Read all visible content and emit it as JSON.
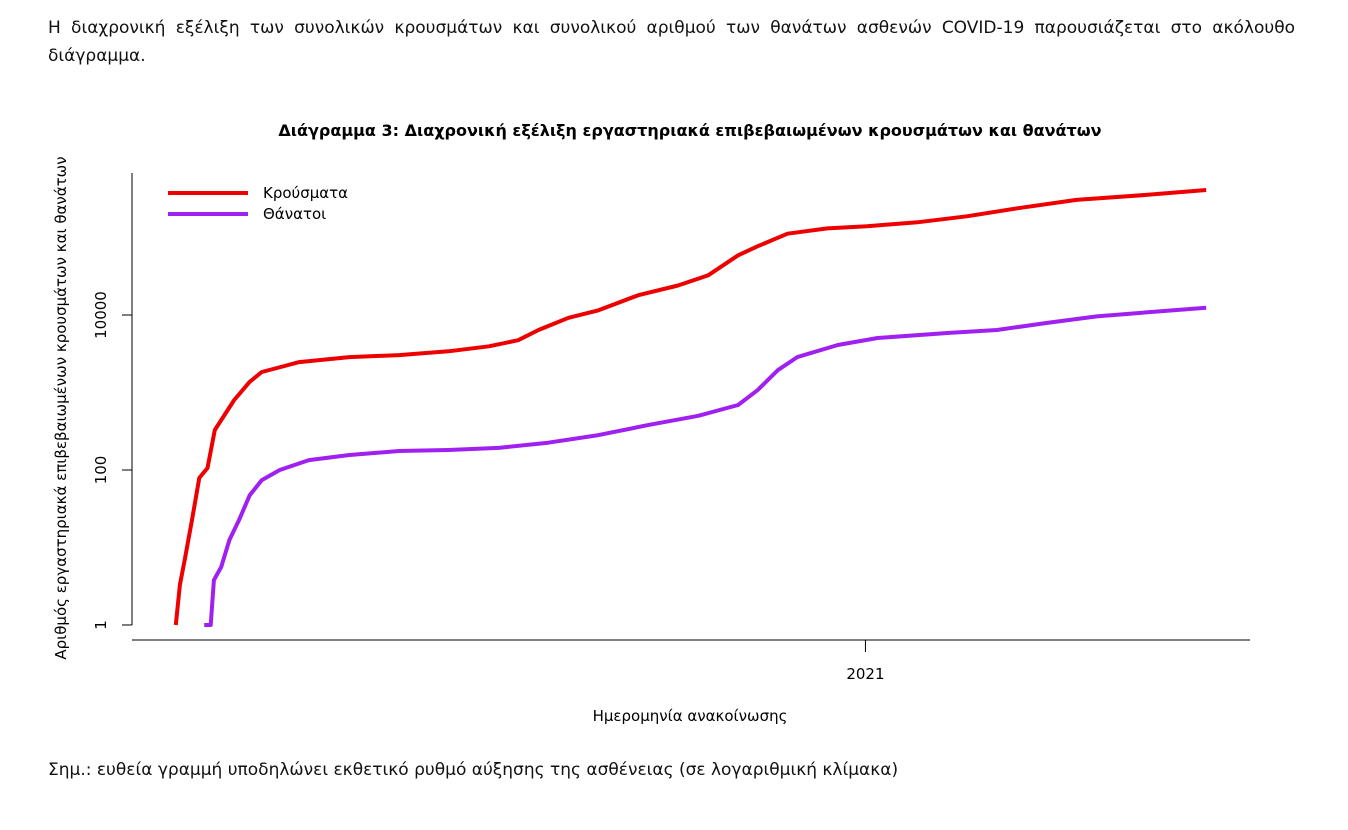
{
  "intro": "Η διαχρονική εξέλιξη των συνολικών κρουσμάτων και συνολικού αριθμού των θανάτων ασθενών COVID-19 παρουσιάζεται στο ακόλουθο διάγραμμα.",
  "chart_data": {
    "type": "line",
    "title": "Διάγραμμα 3: Διαχρονική εξέλιξη εργαστηριακά επιβεβαιωμένων κρουσμάτων και θανάτων",
    "xlabel": "Ημερομηνία ανακοίνωσης",
    "ylabel": "Αριθμός εργαστηριακά επιβεβαιωμένων κρουσμάτων και θανάτων",
    "log_y": true,
    "legend": "top-left",
    "grid": false,
    "xlim": [
      2020.096,
      2021.474
    ],
    "xticks": [
      2021
    ],
    "ylim": [
      0.64,
      680000
    ],
    "yticks": [
      1,
      100,
      10000
    ],
    "series": [
      {
        "name": "Κρούσματα",
        "color": "#ee0000",
        "x": [
          2020.15,
          2020.155,
          2020.161,
          2020.17,
          2020.179,
          2020.189,
          2020.198,
          2020.21,
          2020.222,
          2020.241,
          2020.256,
          2020.284,
          2020.302,
          2020.364,
          2020.425,
          2020.486,
          2020.536,
          2020.572,
          2020.597,
          2020.634,
          2020.671,
          2020.72,
          2020.769,
          2020.806,
          2020.843,
          2020.867,
          2020.904,
          2020.953,
          2021.002,
          2021.064,
          2021.125,
          2021.187,
          2021.26,
          2021.346,
          2021.42
        ],
        "values": [
          1,
          3.3,
          6.9,
          22.7,
          79,
          106,
          328,
          512,
          800,
          1370,
          1840,
          2200,
          2470,
          2860,
          3040,
          3400,
          3950,
          4730,
          6400,
          9200,
          11500,
          18000,
          24000,
          32400,
          59000,
          77000,
          112000,
          131000,
          140000,
          157000,
          188000,
          238000,
          306000,
          355000,
          410000
        ]
      },
      {
        "name": "Θάνατοι",
        "color": "#a020f0",
        "x": [
          2020.185,
          2020.193,
          2020.197,
          2020.206,
          2020.216,
          2020.228,
          2020.241,
          2020.256,
          2020.278,
          2020.314,
          2020.364,
          2020.425,
          2020.486,
          2020.548,
          2020.609,
          2020.671,
          2020.732,
          2020.794,
          2020.843,
          2020.867,
          2020.892,
          2020.916,
          2020.966,
          2021.015,
          2021.101,
          2021.162,
          2021.224,
          2021.285,
          2021.346,
          2021.42
        ],
        "values": [
          1,
          1,
          3.8,
          5.6,
          12.5,
          22.7,
          47,
          74,
          100,
          134,
          156,
          176,
          181,
          193,
          225,
          282,
          380,
          500,
          690,
          1070,
          1940,
          2860,
          4100,
          5050,
          5860,
          6400,
          7900,
          9600,
          10800,
          12400
        ]
      }
    ]
  },
  "note": "Σημ.: ευθεία γραμμή υποδηλώνει εκθετικό ρυθμό αύξησης της ασθένειας (σε λογαριθμική κλίμακα)"
}
